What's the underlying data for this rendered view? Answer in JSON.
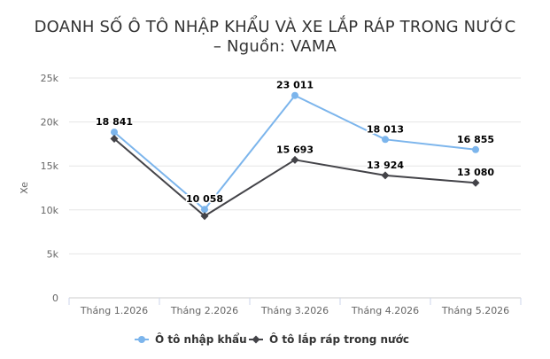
{
  "chart_data": {
    "type": "line",
    "title_line1": "DOANH SỐ Ô TÔ NHẬP KHẨU VÀ XE LẮP RÁP TRONG NƯỚC",
    "title_line2": "– Nguồn: VAMA",
    "ylabel": "Xe",
    "ylim": [
      0,
      25000
    ],
    "yticks": [
      0,
      5000,
      10000,
      15000,
      20000,
      25000
    ],
    "ytick_labels": [
      "0",
      "5k",
      "10k",
      "15k",
      "20k",
      "25k"
    ],
    "categories": [
      "Tháng 1.2026",
      "Tháng 2.2026",
      "Tháng 3.2026",
      "Tháng 4.2026",
      "Tháng 5.2026"
    ],
    "grid": true,
    "legend_position": "bottom",
    "series": [
      {
        "name": "Ô tô nhập khẩu",
        "color": "#7cb5ec",
        "marker": "circle",
        "values": [
          18841,
          10058,
          23011,
          18013,
          16855
        ],
        "labels": [
          "18 841",
          "10 058",
          "23 011",
          "18 013",
          "16 855"
        ]
      },
      {
        "name": "Ô tô lắp ráp trong nước",
        "color": "#434348",
        "marker": "diamond",
        "values": [
          18100,
          9300,
          15693,
          13924,
          13080
        ],
        "labels": [
          "",
          "",
          "15 693",
          "13 924",
          "13 080"
        ]
      }
    ]
  }
}
